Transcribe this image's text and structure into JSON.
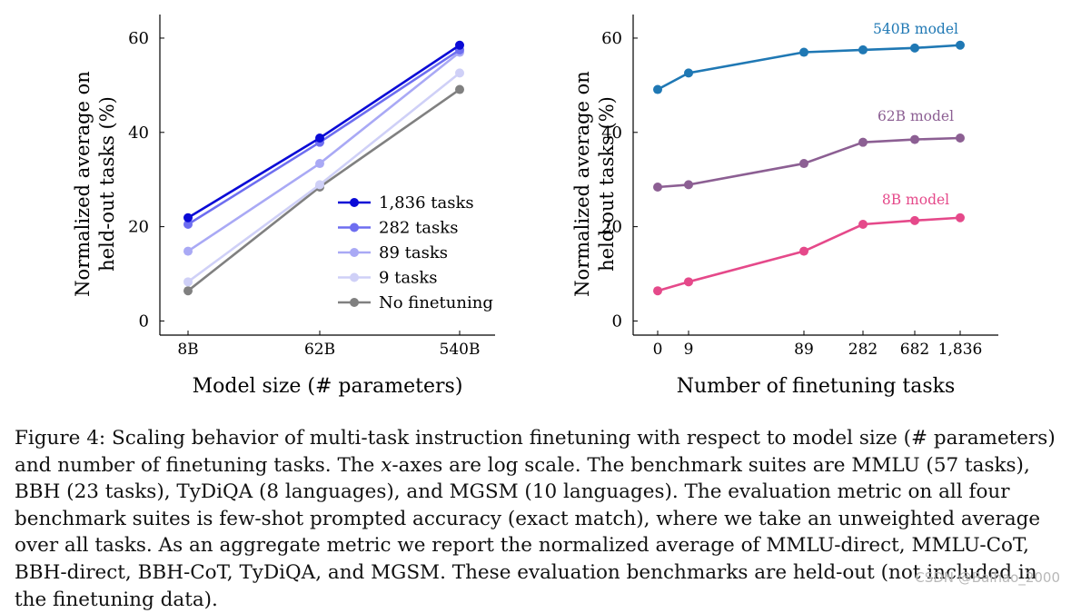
{
  "colors": {
    "t1836": "#0a0ad6",
    "t282": "#6e6ef0",
    "t89": "#a9a9f5",
    "t9": "#cfd0f7",
    "none": "#808080",
    "m540": "#1f78b4",
    "m62": "#8c5f93",
    "m8": "#e5498a",
    "axis": "#000000"
  },
  "chart_data": [
    {
      "type": "line",
      "xscale": "log",
      "x": [
        8,
        62,
        540
      ],
      "categories": [
        "8B",
        "62B",
        "540B"
      ],
      "xlabel": "Model size (# parameters)",
      "ylabel": [
        "Normalized average on",
        "held-out tasks (%)"
      ],
      "ylim": [
        -3,
        65
      ],
      "yticks": [
        0,
        20,
        40,
        60
      ],
      "legend_position": "bottom-right",
      "series": [
        {
          "name": "1,836 tasks",
          "color_key": "t1836",
          "values": [
            21.9,
            38.8,
            58.5
          ]
        },
        {
          "name": "282 tasks",
          "color_key": "t282",
          "values": [
            20.5,
            37.9,
            57.5
          ]
        },
        {
          "name": "89 tasks",
          "color_key": "t89",
          "values": [
            14.8,
            33.4,
            57.0
          ]
        },
        {
          "name": "9 tasks",
          "color_key": "t9",
          "values": [
            8.3,
            28.9,
            52.6
          ]
        },
        {
          "name": "No finetuning",
          "color_key": "none",
          "values": [
            6.4,
            28.4,
            49.1
          ]
        }
      ]
    },
    {
      "type": "line",
      "xscale": "custom",
      "x": [
        0,
        9,
        89,
        282,
        682,
        1836
      ],
      "categories": [
        "0",
        "9",
        "89",
        "282",
        "682",
        "1,836"
      ],
      "xlabel": "Number of finetuning tasks",
      "ylabel": [
        "Normalized average on",
        "held-out tasks (%)"
      ],
      "ylim": [
        -3,
        65
      ],
      "yticks": [
        0,
        20,
        40,
        60
      ],
      "series": [
        {
          "name": "540B model",
          "color_key": "m540",
          "values": [
            49.1,
            52.6,
            57.0,
            57.5,
            57.9,
            58.5
          ]
        },
        {
          "name": "62B model",
          "color_key": "m62",
          "values": [
            28.4,
            28.9,
            33.4,
            37.9,
            38.5,
            38.8
          ]
        },
        {
          "name": "8B model",
          "color_key": "m8",
          "values": [
            6.4,
            8.3,
            14.8,
            20.5,
            21.3,
            21.9
          ]
        }
      ]
    }
  ],
  "caption": {
    "lead": "Figure 4: Scaling behavior of multi-task instruction finetuning with respect to model size (# parameters) and number of finetuning tasks. The ",
    "var": "x",
    "rest": "-axes are log scale. The benchmark suites are MMLU (57 tasks), BBH (23 tasks), TyDiQA (8 languages), and MGSM (10 languages). The evaluation metric on all four benchmark suites is few-shot prompted accuracy (exact match), where we take an unweighted average over all tasks. As an aggregate metric we report the normalized average of MMLU-direct, MMLU-CoT, BBH-direct, BBH-CoT, TyDiQA, and MGSM. These evaluation benchmarks are held-out (not included in the finetuning data)."
  },
  "watermark": "CSDN @Baihao_2000"
}
